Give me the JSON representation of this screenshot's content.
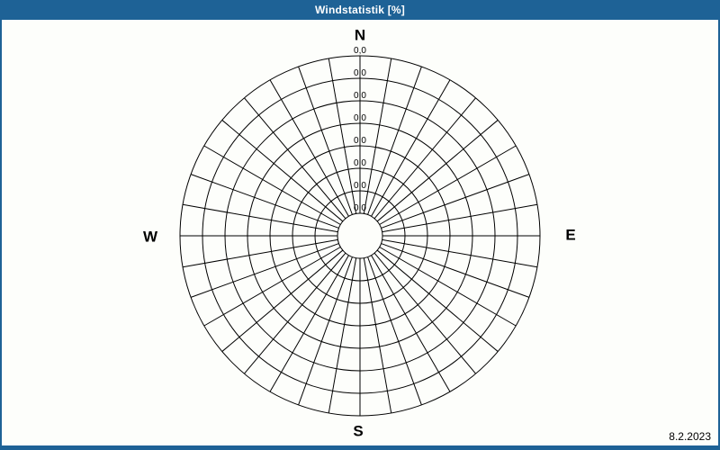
{
  "window": {
    "title": "Windstatistik [%]"
  },
  "footer": {
    "date": "8.2.2023"
  },
  "colors": {
    "accent": "#1e6296",
    "background": "#fdfefb",
    "grid": "#000000",
    "text": "#000000",
    "title_text": "#ffffff"
  },
  "chart_data": {
    "type": "polar",
    "subtype": "wind-rose",
    "title": "Windstatistik [%]",
    "unit": "%",
    "compass_labels": {
      "north": "N",
      "east": "E",
      "south": "S",
      "west": "W"
    },
    "sector_count": 36,
    "sector_angle_deg": 10,
    "ring_count": 8,
    "radial_tick_labels": [
      "0,0",
      "0,0",
      "0,0",
      "0,0",
      "0,0",
      "0,0",
      "0,0",
      "0,0"
    ],
    "radial_axis_min": 0.0,
    "radial_axis_max": 0.0,
    "grid": true,
    "legend": false,
    "series": [
      {
        "name": "Windstatistik",
        "values": [
          0,
          0,
          0,
          0,
          0,
          0,
          0,
          0,
          0,
          0,
          0,
          0,
          0,
          0,
          0,
          0,
          0,
          0,
          0,
          0,
          0,
          0,
          0,
          0,
          0,
          0,
          0,
          0,
          0,
          0,
          0,
          0,
          0,
          0,
          0,
          0
        ]
      }
    ],
    "date_label": "8.2.2023"
  }
}
